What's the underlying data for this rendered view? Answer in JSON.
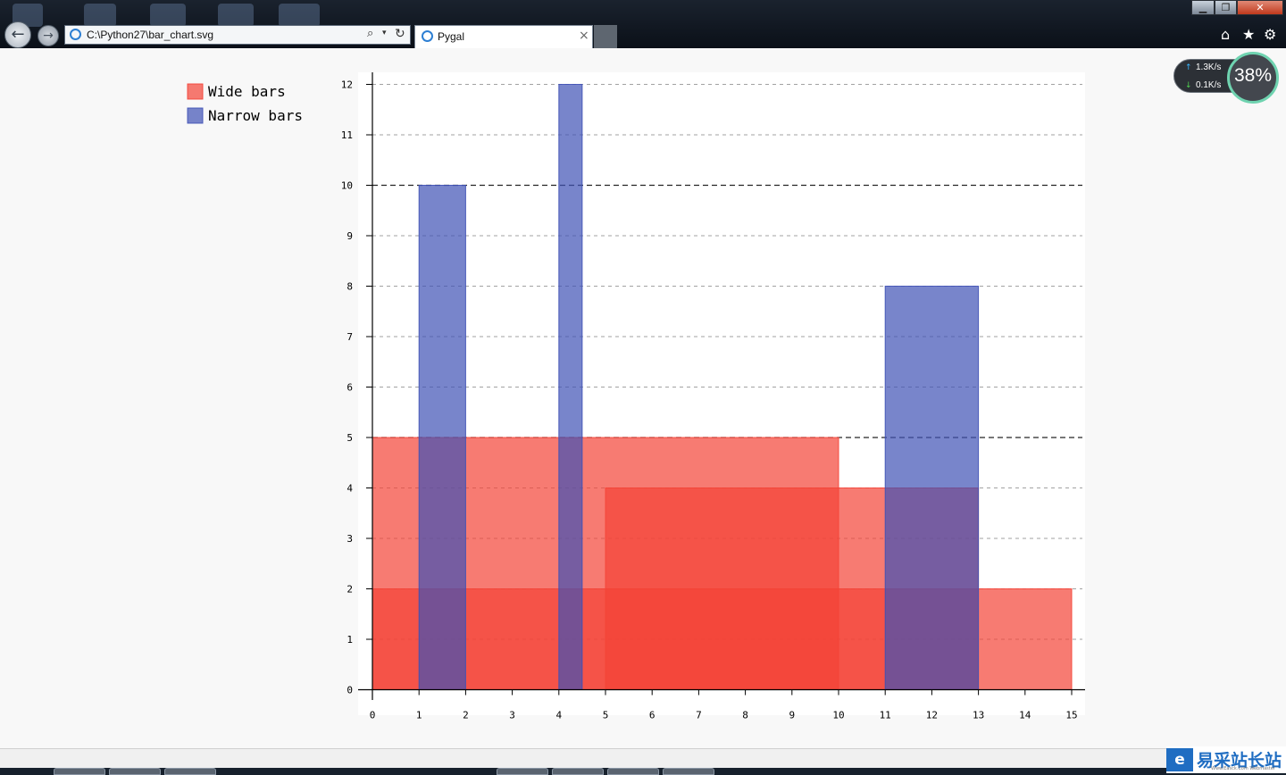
{
  "browser": {
    "address_url": "C:\\Python27\\bar_chart.svg",
    "tab_title": "Pygal",
    "tab_close": "×",
    "back_glyph": "←",
    "forward_glyph": "→",
    "search_glyph": "⌕",
    "dropdown_glyph": "▾",
    "refresh_glyph": "↻",
    "home_glyph": "⌂",
    "favorites_glyph": "★",
    "tools_glyph": "⚙",
    "minimize_glyph": "▁",
    "maximize_glyph": "❐",
    "close_glyph": "✕",
    "icons": [
      "back-icon",
      "forward-icon",
      "search-icon",
      "refresh-icon",
      "home-icon",
      "favorites-icon",
      "tools-icon"
    ]
  },
  "netmon": {
    "up_arrow": "↑",
    "down_arrow": "↓",
    "up_speed": "1.3K/s",
    "down_speed": "0.1K/s",
    "percent": "38%"
  },
  "watermark": {
    "logo": "e",
    "text": "易采站长站",
    "sub": "Www.Easck.Com Webmaster"
  },
  "colors": {
    "wide": "#f44336",
    "narrow": "#3f51b5",
    "background": "#f8f8f8",
    "plot_background": "#ffffff",
    "guide": "#999999",
    "major_guide": "#000000"
  },
  "chart_data": {
    "type": "bar",
    "title": "",
    "xlabel": "",
    "ylabel": "",
    "xlim": [
      0,
      15
    ],
    "ylim": [
      0,
      12
    ],
    "x_ticks": [
      0,
      1,
      2,
      3,
      4,
      5,
      6,
      7,
      8,
      9,
      10,
      11,
      12,
      13,
      14,
      15
    ],
    "y_ticks": [
      0,
      1,
      2,
      3,
      4,
      5,
      6,
      7,
      8,
      9,
      10,
      11,
      12
    ],
    "major_y_ticks": [
      5,
      10
    ],
    "legend_position": "top-left",
    "grid": true,
    "series": [
      {
        "name": "Wide bars",
        "color": "#f44336",
        "bars": [
          {
            "height": 5,
            "start": 0,
            "end": 10
          },
          {
            "height": 4,
            "start": 5,
            "end": 13
          },
          {
            "height": 2,
            "start": 0,
            "end": 15
          }
        ]
      },
      {
        "name": "Narrow bars",
        "color": "#3f51b5",
        "bars": [
          {
            "height": 10,
            "start": 1,
            "end": 2
          },
          {
            "height": 12,
            "start": 4,
            "end": 4.5
          },
          {
            "height": 8,
            "start": 11,
            "end": 13
          }
        ]
      }
    ]
  }
}
